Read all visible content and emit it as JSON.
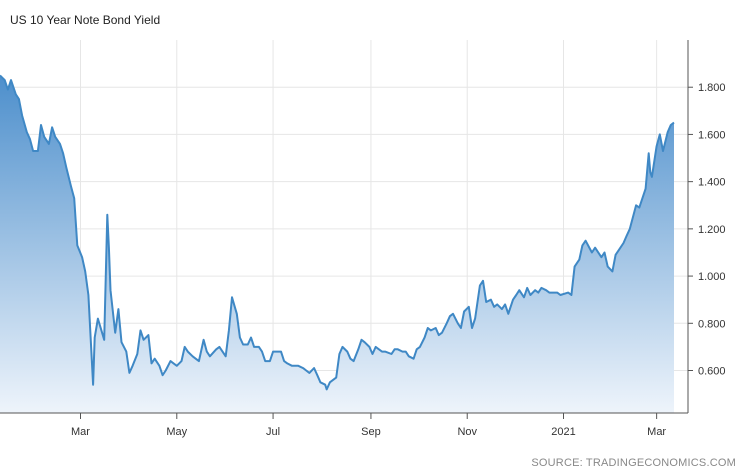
{
  "chart_data": {
    "type": "area",
    "title": "US 10 Year Note Bond Yield",
    "source": "SOURCE: TRADINGECONOMICS.COM",
    "xlabel": "",
    "ylabel": "",
    "xlim": [
      "2020-01-10",
      "2021-03-12"
    ],
    "ylim": [
      0.42,
      2.0
    ],
    "grid": true,
    "legend": "none",
    "colors": {
      "line": "#3f88c5",
      "fill_top": "#4d8fcc",
      "fill_bottom": "#eef4fb",
      "grid": "#e6e6e6",
      "axis": "#555555"
    },
    "y_ticks": [
      0.6,
      0.8,
      1.0,
      1.2,
      1.4,
      1.6,
      1.8
    ],
    "y_tick_labels": [
      "0.600",
      "0.800",
      "1.000",
      "1.200",
      "1.400",
      "1.600",
      "1.800"
    ],
    "x_ticks": [
      {
        "date": "2020-03-01",
        "label": "Mar"
      },
      {
        "date": "2020-05-01",
        "label": "May"
      },
      {
        "date": "2020-07-01",
        "label": "Jul"
      },
      {
        "date": "2020-09-01",
        "label": "Sep"
      },
      {
        "date": "2020-11-01",
        "label": "Nov"
      },
      {
        "date": "2021-01-01",
        "label": "2021"
      },
      {
        "date": "2021-03-01",
        "label": "Mar"
      }
    ],
    "series": [
      {
        "x": [
          "2020-01-10",
          "2020-01-13",
          "2020-01-15",
          "2020-01-17",
          "2020-01-20",
          "2020-01-22",
          "2020-01-24",
          "2020-01-27",
          "2020-01-29",
          "2020-01-31",
          "2020-02-03",
          "2020-02-05",
          "2020-02-07",
          "2020-02-10",
          "2020-02-12",
          "2020-02-14",
          "2020-02-17",
          "2020-02-19",
          "2020-02-21",
          "2020-02-24",
          "2020-02-26",
          "2020-02-28",
          "2020-03-02",
          "2020-03-04",
          "2020-03-06",
          "2020-03-09",
          "2020-03-10",
          "2020-03-12",
          "2020-03-16",
          "2020-03-18",
          "2020-03-19",
          "2020-03-20",
          "2020-03-23",
          "2020-03-25",
          "2020-03-27",
          "2020-03-30",
          "2020-04-01",
          "2020-04-03",
          "2020-04-06",
          "2020-04-08",
          "2020-04-10",
          "2020-04-13",
          "2020-04-15",
          "2020-04-17",
          "2020-04-20",
          "2020-04-22",
          "2020-04-24",
          "2020-04-27",
          "2020-04-29",
          "2020-05-01",
          "2020-05-04",
          "2020-05-06",
          "2020-05-08",
          "2020-05-11",
          "2020-05-13",
          "2020-05-15",
          "2020-05-18",
          "2020-05-20",
          "2020-05-22",
          "2020-05-26",
          "2020-05-28",
          "2020-06-01",
          "2020-06-03",
          "2020-06-05",
          "2020-06-08",
          "2020-06-10",
          "2020-06-12",
          "2020-06-15",
          "2020-06-17",
          "2020-06-19",
          "2020-06-22",
          "2020-06-24",
          "2020-06-26",
          "2020-06-29",
          "2020-07-01",
          "2020-07-06",
          "2020-07-08",
          "2020-07-10",
          "2020-07-13",
          "2020-07-15",
          "2020-07-17",
          "2020-07-20",
          "2020-07-22",
          "2020-07-24",
          "2020-07-27",
          "2020-07-29",
          "2020-07-31",
          "2020-08-03",
          "2020-08-04",
          "2020-08-06",
          "2020-08-10",
          "2020-08-12",
          "2020-08-14",
          "2020-08-17",
          "2020-08-19",
          "2020-08-21",
          "2020-08-24",
          "2020-08-26",
          "2020-08-28",
          "2020-08-31",
          "2020-09-02",
          "2020-09-04",
          "2020-09-08",
          "2020-09-10",
          "2020-09-14",
          "2020-09-16",
          "2020-09-18",
          "2020-09-21",
          "2020-09-23",
          "2020-09-25",
          "2020-09-28",
          "2020-09-30",
          "2020-10-02",
          "2020-10-05",
          "2020-10-07",
          "2020-10-09",
          "2020-10-12",
          "2020-10-14",
          "2020-10-16",
          "2020-10-19",
          "2020-10-21",
          "2020-10-23",
          "2020-10-26",
          "2020-10-28",
          "2020-10-30",
          "2020-11-02",
          "2020-11-04",
          "2020-11-06",
          "2020-11-09",
          "2020-11-11",
          "2020-11-13",
          "2020-11-16",
          "2020-11-18",
          "2020-11-20",
          "2020-11-23",
          "2020-11-25",
          "2020-11-27",
          "2020-11-30",
          "2020-12-02",
          "2020-12-04",
          "2020-12-07",
          "2020-12-09",
          "2020-12-11",
          "2020-12-14",
          "2020-12-16",
          "2020-12-18",
          "2020-12-21",
          "2020-12-23",
          "2020-12-28",
          "2020-12-30",
          "2021-01-04",
          "2021-01-06",
          "2021-01-08",
          "2021-01-11",
          "2021-01-13",
          "2021-01-15",
          "2021-01-19",
          "2021-01-21",
          "2021-01-25",
          "2021-01-27",
          "2021-01-29",
          "2021-02-01",
          "2021-02-03",
          "2021-02-05",
          "2021-02-08",
          "2021-02-10",
          "2021-02-12",
          "2021-02-16",
          "2021-02-18",
          "2021-02-22",
          "2021-02-24",
          "2021-02-25",
          "2021-02-26",
          "2021-03-01",
          "2021-03-03",
          "2021-03-05",
          "2021-03-08",
          "2021-03-10",
          "2021-03-12"
        ],
        "values": [
          1.85,
          1.83,
          1.79,
          1.83,
          1.77,
          1.75,
          1.68,
          1.61,
          1.58,
          1.53,
          1.53,
          1.64,
          1.59,
          1.56,
          1.63,
          1.59,
          1.56,
          1.52,
          1.46,
          1.38,
          1.33,
          1.13,
          1.08,
          1.02,
          0.92,
          0.54,
          0.74,
          0.82,
          0.73,
          1.26,
          1.12,
          0.94,
          0.76,
          0.86,
          0.72,
          0.68,
          0.59,
          0.62,
          0.67,
          0.77,
          0.73,
          0.75,
          0.63,
          0.65,
          0.62,
          0.58,
          0.6,
          0.64,
          0.63,
          0.62,
          0.64,
          0.7,
          0.68,
          0.66,
          0.65,
          0.64,
          0.73,
          0.68,
          0.66,
          0.69,
          0.7,
          0.66,
          0.77,
          0.91,
          0.84,
          0.74,
          0.71,
          0.71,
          0.74,
          0.7,
          0.7,
          0.68,
          0.64,
          0.64,
          0.68,
          0.68,
          0.64,
          0.63,
          0.62,
          0.62,
          0.62,
          0.61,
          0.6,
          0.59,
          0.61,
          0.58,
          0.55,
          0.54,
          0.52,
          0.55,
          0.57,
          0.67,
          0.7,
          0.68,
          0.65,
          0.64,
          0.69,
          0.73,
          0.72,
          0.7,
          0.67,
          0.7,
          0.68,
          0.68,
          0.67,
          0.69,
          0.69,
          0.68,
          0.68,
          0.66,
          0.65,
          0.69,
          0.7,
          0.74,
          0.78,
          0.77,
          0.78,
          0.75,
          0.76,
          0.8,
          0.83,
          0.84,
          0.8,
          0.78,
          0.85,
          0.87,
          0.78,
          0.82,
          0.96,
          0.98,
          0.89,
          0.9,
          0.87,
          0.88,
          0.86,
          0.88,
          0.84,
          0.9,
          0.92,
          0.94,
          0.91,
          0.95,
          0.92,
          0.94,
          0.93,
          0.95,
          0.94,
          0.93,
          0.93,
          0.92,
          0.93,
          0.92,
          1.04,
          1.07,
          1.13,
          1.15,
          1.1,
          1.12,
          1.08,
          1.1,
          1.04,
          1.02,
          1.09,
          1.11,
          1.14,
          1.17,
          1.2,
          1.3,
          1.29,
          1.37,
          1.52,
          1.44,
          1.42,
          1.55,
          1.6,
          1.53,
          1.61,
          1.64,
          1.65
        ]
      }
    ]
  }
}
